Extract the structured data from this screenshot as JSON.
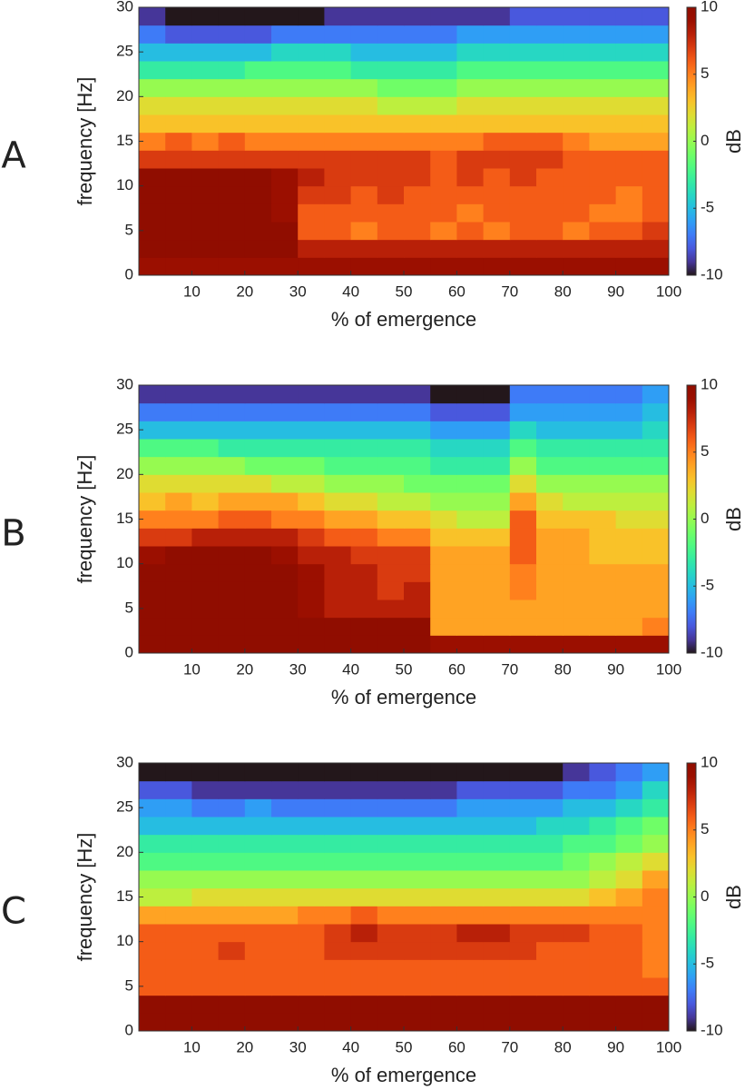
{
  "chart_data": [
    {
      "type": "heatmap",
      "label": "A",
      "xlabel": "% of emergence",
      "ylabel": "frequency [Hz]",
      "colorbar_label": "dB",
      "colormap": "turbo",
      "xlim": [
        0,
        100
      ],
      "ylim": [
        0,
        30
      ],
      "clim": [
        -10,
        10
      ],
      "xticks": [
        10,
        20,
        30,
        40,
        50,
        60,
        70,
        80,
        90,
        100
      ],
      "yticks": [
        0,
        5,
        10,
        15,
        20,
        25,
        30
      ],
      "cticks": [
        -10,
        -5,
        0,
        5,
        10
      ],
      "xbins": [
        0,
        5,
        10,
        15,
        20,
        25,
        30,
        35,
        40,
        45,
        50,
        55,
        60,
        65,
        70,
        75,
        80,
        85,
        90,
        95,
        100
      ],
      "ybins": [
        0,
        2,
        4,
        6,
        8,
        10,
        12,
        14,
        16,
        18,
        20,
        22,
        24,
        26,
        28,
        30
      ],
      "values": [
        [
          9,
          9,
          9,
          9,
          9,
          9,
          9,
          9,
          9,
          9,
          9,
          9,
          9,
          9,
          9,
          9,
          9,
          9,
          9,
          9
        ],
        [
          10,
          10,
          10,
          10,
          10,
          10,
          8,
          8,
          8,
          8,
          8,
          8,
          8,
          8,
          8,
          8,
          8,
          8,
          8,
          8
        ],
        [
          10,
          10,
          10,
          10,
          10,
          10,
          6,
          6,
          5,
          6,
          6,
          5,
          6,
          5,
          6,
          6,
          5,
          6,
          6,
          7
        ],
        [
          10,
          10,
          10,
          10,
          10,
          9,
          6,
          6,
          6,
          6,
          6,
          6,
          5,
          6,
          6,
          6,
          6,
          5,
          5,
          6
        ],
        [
          10,
          10,
          10,
          10,
          10,
          9,
          7,
          7,
          6,
          7,
          6,
          6,
          6,
          6,
          6,
          6,
          6,
          6,
          5,
          6
        ],
        [
          10,
          10,
          10,
          10,
          10,
          9,
          8,
          7,
          7,
          7,
          7,
          6,
          7,
          6,
          7,
          6,
          6,
          6,
          6,
          6
        ],
        [
          7,
          7,
          7,
          7,
          7,
          7,
          7,
          7,
          7,
          7,
          7,
          6,
          7,
          7,
          7,
          7,
          6,
          6,
          6,
          6
        ],
        [
          5,
          6,
          5,
          6,
          5,
          5,
          5,
          5,
          5,
          5,
          5,
          5,
          5,
          6,
          6,
          6,
          5,
          4,
          4,
          4
        ],
        [
          3,
          3,
          3,
          3,
          3,
          3,
          3,
          3,
          3,
          3,
          3,
          3,
          3,
          3,
          3,
          3,
          3,
          3,
          3,
          3
        ],
        [
          2,
          2,
          2,
          2,
          2,
          2,
          2,
          2,
          2,
          1,
          1,
          1,
          2,
          2,
          2,
          2,
          2,
          2,
          2,
          2
        ],
        [
          0,
          0,
          0,
          0,
          0,
          0,
          0,
          0,
          0,
          -1,
          -1,
          -1,
          0,
          0,
          0,
          0,
          0,
          0,
          0,
          0
        ],
        [
          -3,
          -3,
          -3,
          -3,
          -2,
          -2,
          -2,
          -2,
          -3,
          -3,
          -3,
          -3,
          -2,
          -2,
          -2,
          -2,
          -2,
          -2,
          -2,
          -2
        ],
        [
          -5,
          -5,
          -5,
          -5,
          -5,
          -4,
          -4,
          -4,
          -5,
          -5,
          -5,
          -5,
          -4,
          -4,
          -4,
          -4,
          -4,
          -4,
          -4,
          -4
        ],
        [
          -7,
          -8,
          -8,
          -8,
          -8,
          -7,
          -7,
          -7,
          -7,
          -7,
          -7,
          -7,
          -6,
          -6,
          -6,
          -6,
          -6,
          -6,
          -6,
          -6
        ],
        [
          -9,
          -10,
          -10,
          -10,
          -10,
          -10,
          -10,
          -9,
          -9,
          -9,
          -9,
          -9,
          -9,
          -9,
          -8,
          -8,
          -8,
          -8,
          -8,
          -8
        ]
      ]
    },
    {
      "type": "heatmap",
      "label": "B",
      "xlabel": "% of emergence",
      "ylabel": "frequency [Hz]",
      "colorbar_label": "dB",
      "colormap": "turbo",
      "xlim": [
        0,
        100
      ],
      "ylim": [
        0,
        30
      ],
      "clim": [
        -10,
        10
      ],
      "xticks": [
        10,
        20,
        30,
        40,
        50,
        60,
        70,
        80,
        90,
        100
      ],
      "yticks": [
        0,
        5,
        10,
        15,
        20,
        25,
        30
      ],
      "cticks": [
        -10,
        -5,
        0,
        5,
        10
      ],
      "xbins": [
        0,
        5,
        10,
        15,
        20,
        25,
        30,
        35,
        40,
        45,
        50,
        55,
        60,
        65,
        70,
        75,
        80,
        85,
        90,
        95,
        100
      ],
      "ybins": [
        0,
        2,
        4,
        6,
        8,
        10,
        12,
        14,
        16,
        18,
        20,
        22,
        24,
        26,
        28,
        30
      ],
      "values": [
        [
          10,
          10,
          10,
          10,
          10,
          10,
          10,
          10,
          10,
          10,
          10,
          9,
          9,
          9,
          9,
          9,
          9,
          9,
          9,
          9
        ],
        [
          10,
          10,
          10,
          10,
          10,
          10,
          10,
          10,
          10,
          10,
          10,
          4,
          4,
          4,
          4,
          4,
          4,
          4,
          4,
          5
        ],
        [
          10,
          10,
          10,
          10,
          10,
          10,
          9,
          8,
          8,
          8,
          8,
          4,
          4,
          4,
          4,
          4,
          4,
          4,
          4,
          4
        ],
        [
          10,
          10,
          10,
          10,
          10,
          10,
          9,
          8,
          8,
          7,
          8,
          4,
          4,
          4,
          5,
          4,
          4,
          4,
          4,
          4
        ],
        [
          10,
          10,
          10,
          10,
          10,
          10,
          9,
          8,
          8,
          7,
          7,
          4,
          4,
          4,
          5,
          4,
          4,
          4,
          4,
          4
        ],
        [
          9,
          10,
          10,
          10,
          10,
          9,
          8,
          8,
          7,
          7,
          7,
          4,
          4,
          4,
          6,
          4,
          4,
          3,
          3,
          3
        ],
        [
          7,
          7,
          8,
          8,
          8,
          8,
          7,
          6,
          6,
          5,
          5,
          3,
          3,
          3,
          6,
          4,
          4,
          3,
          3,
          3
        ],
        [
          5,
          5,
          5,
          6,
          6,
          5,
          5,
          4,
          4,
          3,
          3,
          2,
          1,
          1,
          6,
          3,
          3,
          3,
          2,
          2
        ],
        [
          3,
          4,
          3,
          4,
          4,
          4,
          3,
          2,
          2,
          1,
          1,
          0,
          0,
          0,
          4,
          2,
          1,
          1,
          1,
          1
        ],
        [
          2,
          2,
          2,
          2,
          2,
          1,
          1,
          0,
          0,
          0,
          -1,
          -1,
          -1,
          -1,
          2,
          0,
          0,
          0,
          0,
          0
        ],
        [
          0,
          0,
          0,
          0,
          -1,
          -1,
          -1,
          -2,
          -2,
          -2,
          -2,
          -3,
          -3,
          -3,
          0,
          -2,
          -2,
          -2,
          -2,
          -2
        ],
        [
          -2,
          -2,
          -2,
          -3,
          -3,
          -3,
          -3,
          -3,
          -3,
          -3,
          -3,
          -4,
          -4,
          -4,
          -2,
          -3,
          -3,
          -3,
          -3,
          -3
        ],
        [
          -5,
          -5,
          -5,
          -5,
          -5,
          -5,
          -5,
          -5,
          -5,
          -5,
          -5,
          -6,
          -6,
          -6,
          -4,
          -5,
          -5,
          -5,
          -5,
          -4
        ],
        [
          -7,
          -7,
          -7,
          -7,
          -7,
          -7,
          -7,
          -7,
          -7,
          -7,
          -7,
          -8,
          -8,
          -8,
          -6,
          -6,
          -6,
          -6,
          -6,
          -5
        ],
        [
          -9,
          -9,
          -9,
          -9,
          -9,
          -9,
          -9,
          -9,
          -9,
          -9,
          -9,
          -10,
          -10,
          -10,
          -7,
          -7,
          -7,
          -7,
          -7,
          -6
        ]
      ]
    },
    {
      "type": "heatmap",
      "label": "C",
      "xlabel": "% of emergence",
      "ylabel": "frequency [Hz]",
      "colorbar_label": "dB",
      "colormap": "turbo",
      "xlim": [
        0,
        100
      ],
      "ylim": [
        0,
        30
      ],
      "clim": [
        -10,
        10
      ],
      "xticks": [
        10,
        20,
        30,
        40,
        50,
        60,
        70,
        80,
        90,
        100
      ],
      "yticks": [
        0,
        5,
        10,
        15,
        20,
        25,
        30
      ],
      "cticks": [
        -10,
        -5,
        0,
        5,
        10
      ],
      "xbins": [
        0,
        5,
        10,
        15,
        20,
        25,
        30,
        35,
        40,
        45,
        50,
        55,
        60,
        65,
        70,
        75,
        80,
        85,
        90,
        95,
        100
      ],
      "ybins": [
        0,
        2,
        4,
        6,
        8,
        10,
        12,
        14,
        16,
        18,
        20,
        22,
        24,
        26,
        28,
        30
      ],
      "values": [
        [
          10,
          10,
          10,
          10,
          10,
          10,
          10,
          10,
          10,
          10,
          10,
          10,
          10,
          10,
          10,
          10,
          10,
          10,
          10,
          10
        ],
        [
          10,
          10,
          10,
          10,
          10,
          10,
          10,
          10,
          10,
          10,
          10,
          10,
          10,
          10,
          10,
          10,
          10,
          10,
          10,
          10
        ],
        [
          6,
          6,
          6,
          6,
          6,
          6,
          6,
          6,
          6,
          6,
          6,
          6,
          6,
          6,
          6,
          6,
          6,
          6,
          6,
          6
        ],
        [
          6,
          6,
          6,
          6,
          6,
          6,
          6,
          6,
          6,
          6,
          6,
          6,
          6,
          6,
          6,
          6,
          6,
          6,
          6,
          5
        ],
        [
          6,
          6,
          6,
          7,
          6,
          6,
          6,
          7,
          7,
          7,
          7,
          7,
          7,
          7,
          7,
          6,
          6,
          6,
          6,
          5
        ],
        [
          6,
          6,
          6,
          6,
          6,
          6,
          6,
          7,
          8,
          7,
          7,
          7,
          8,
          8,
          7,
          7,
          7,
          6,
          6,
          5
        ],
        [
          4,
          4,
          4,
          4,
          4,
          4,
          5,
          5,
          6,
          5,
          5,
          5,
          5,
          5,
          5,
          5,
          5,
          5,
          5,
          5
        ],
        [
          1,
          1,
          2,
          2,
          2,
          2,
          2,
          2,
          2,
          2,
          2,
          2,
          2,
          2,
          2,
          2,
          2,
          3,
          4,
          5
        ],
        [
          0,
          0,
          0,
          0,
          0,
          0,
          0,
          0,
          0,
          0,
          0,
          0,
          0,
          0,
          0,
          0,
          0,
          1,
          2,
          4
        ],
        [
          -2,
          -2,
          -2,
          -2,
          -2,
          -2,
          -2,
          -2,
          -2,
          -2,
          -2,
          -2,
          -2,
          -2,
          -2,
          -2,
          -1,
          0,
          1,
          2
        ],
        [
          -3,
          -3,
          -3,
          -3,
          -3,
          -3,
          -3,
          -3,
          -3,
          -3,
          -3,
          -3,
          -3,
          -3,
          -3,
          -3,
          -2,
          -2,
          -1,
          0
        ],
        [
          -5,
          -5,
          -5,
          -5,
          -5,
          -5,
          -5,
          -5,
          -5,
          -5,
          -5,
          -5,
          -5,
          -5,
          -5,
          -4,
          -4,
          -3,
          -2,
          -1
        ],
        [
          -6,
          -6,
          -7,
          -7,
          -6,
          -7,
          -7,
          -7,
          -7,
          -7,
          -7,
          -7,
          -6,
          -6,
          -6,
          -6,
          -5,
          -5,
          -4,
          -3
        ],
        [
          -8,
          -8,
          -9,
          -9,
          -9,
          -9,
          -9,
          -9,
          -9,
          -9,
          -9,
          -9,
          -8,
          -8,
          -8,
          -8,
          -7,
          -7,
          -6,
          -4
        ],
        [
          -10,
          -10,
          -10,
          -10,
          -10,
          -10,
          -10,
          -10,
          -10,
          -10,
          -10,
          -10,
          -10,
          -10,
          -10,
          -10,
          -9,
          -8,
          -7,
          -6
        ]
      ]
    }
  ]
}
